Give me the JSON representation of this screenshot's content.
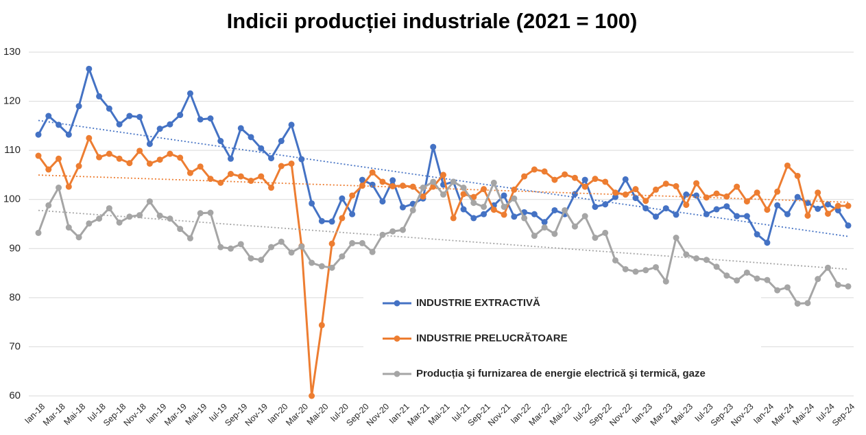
{
  "chart_data": {
    "type": "line",
    "title": "Indicii producției industriale (2021 = 100)",
    "categories": [
      "Ian-18",
      null,
      "Mar-18",
      null,
      "Mai-18",
      null,
      "Iul-18",
      null,
      "Sep-18",
      null,
      "Nov-18",
      null,
      "Ian-19",
      null,
      "Mar-19",
      null,
      "Mai-19",
      null,
      "Iul-19",
      null,
      "Sep-19",
      null,
      "Nov-19",
      null,
      "Ian-20",
      null,
      "Mar-20",
      null,
      "Mai-20",
      null,
      "Iul-20",
      null,
      "Sep-20",
      null,
      "Nov-20",
      null,
      "Ian-21",
      null,
      "Mar-21",
      null,
      "Mai-21",
      null,
      "Iul-21",
      null,
      "Sep-21",
      null,
      "Nov-21",
      null,
      "Ian-22",
      null,
      "Mar-22",
      null,
      "Mai-22",
      null,
      "Iul-22",
      null,
      "Sep-22",
      null,
      "Nov-22",
      null,
      "Ian-23",
      null,
      "Mar-23",
      null,
      "Mai-23",
      null,
      "Iul-23",
      null,
      "Sep-23",
      null,
      "Nov-23",
      null,
      "Ian-24",
      null,
      "Mar-24",
      null,
      "Mai-24",
      null,
      "Iul-24",
      null,
      "Sep-24"
    ],
    "series": [
      {
        "name": "INDUSTRIE EXTRACTIVĂ",
        "color": "#4472c4",
        "values": [
          113.2,
          117,
          115.2,
          113.2,
          119,
          126.6,
          121,
          118.5,
          115.3,
          117,
          116.8,
          111.3,
          114.4,
          115.3,
          117.2,
          121.6,
          116.3,
          116.5,
          111.9,
          108.3,
          114.5,
          112.7,
          110.4,
          108.4,
          111.9,
          115.2,
          108.2,
          99.2,
          95.6,
          95.5,
          100.2,
          97,
          104,
          103,
          99.6,
          103.9,
          98.4,
          99.1,
          100.2,
          110.7,
          103,
          103.6,
          98,
          96.2,
          97,
          98.8,
          100.8,
          96.5,
          97.4,
          97,
          95.4,
          97.8,
          97,
          101.1,
          104,
          98.5,
          99,
          100.5,
          104.1,
          100.3,
          98.2,
          96.5,
          98.2,
          96.9,
          101,
          100.8,
          97,
          98,
          98.6,
          96.6,
          96.6,
          92.9,
          91.2,
          98.8,
          97,
          100.5,
          99.3,
          98.1,
          99,
          97.8,
          94.7
        ]
      },
      {
        "name": "INDUSTRIE PRELUCRĂTOARE",
        "color": "#ed7d31",
        "values": [
          108.9,
          106.1,
          108.3,
          102.6,
          106.8,
          112.5,
          108.6,
          109.3,
          108.3,
          107.4,
          109.9,
          107.3,
          108.1,
          109.3,
          108.5,
          105.4,
          106.7,
          104.2,
          103.4,
          105.2,
          104.7,
          103.8,
          104.7,
          102.4,
          106.8,
          107.3,
          90.5,
          60,
          74.4,
          91,
          96.2,
          100.8,
          102.8,
          105.5,
          103.6,
          102.7,
          102.8,
          102.6,
          100.6,
          102.6,
          105,
          96.2,
          101.1,
          100.5,
          102.1,
          97.9,
          96.9,
          102,
          104.7,
          106.1,
          105.7,
          104,
          105.1,
          104.4,
          102.6,
          104.2,
          103.6,
          101.4,
          101,
          102.1,
          99.7,
          102,
          103.2,
          102.7,
          98.9,
          103.3,
          100.4,
          101.2,
          100.6,
          102.6,
          99.6,
          101.4,
          97.9,
          101.6,
          106.9,
          104.8,
          96.7,
          101.4,
          97.1,
          98.7,
          98.7
        ]
      },
      {
        "name": "Producția şi furnizarea de energie electrică şi termică, gaze",
        "color": "#a5a5a5",
        "values": [
          93.2,
          98.8,
          102.4,
          94.3,
          92.3,
          95.1,
          96.1,
          98.2,
          95.3,
          96.5,
          96.8,
          99.6,
          96.7,
          96.1,
          94,
          92.1,
          97.2,
          97.3,
          90.3,
          90,
          90.9,
          88,
          87.7,
          90.3,
          91.4,
          89.2,
          90.4,
          87.1,
          86.4,
          86.1,
          88.4,
          91.1,
          91.1,
          89.3,
          92.8,
          93.5,
          93.8,
          97.8,
          102.4,
          103.6,
          101,
          103.6,
          102.4,
          99.3,
          98.5,
          103.4,
          98.5,
          100.2,
          96.2,
          92.6,
          94.3,
          93,
          97.8,
          94.5,
          96.6,
          92.2,
          93.2,
          87.6,
          85.8,
          85.3,
          85.6,
          86.2,
          83.3,
          92.2,
          88.8,
          88,
          87.7,
          86.3,
          84.5,
          83.5,
          85.1,
          83.9,
          83.6,
          81.5,
          82.1,
          78.8,
          78.9,
          83.8,
          86.1,
          82.6,
          82.3
        ]
      }
    ],
    "ylim": [
      60,
      130
    ],
    "yticks": [
      60,
      70,
      80,
      90,
      100,
      110,
      120,
      130
    ],
    "grid": true,
    "trendlines": true
  }
}
